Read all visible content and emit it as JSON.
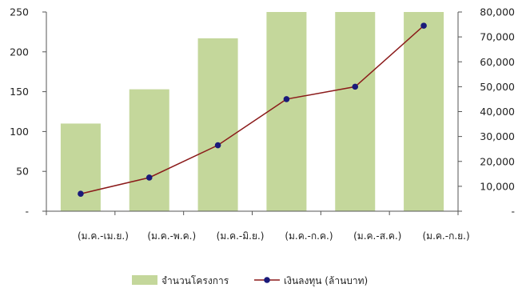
{
  "chart_data": {
    "type": "bar+line",
    "categories": [
      "(ม.ค.-เม.ย.)",
      "(ม.ค.-พ.ค.)",
      "(ม.ค.-มิ.ย.)",
      "(ม.ค.-ก.ค.)",
      "(ม.ค.-ส.ค.)",
      "(ม.ค.-ก.ย.)"
    ],
    "series": [
      {
        "name": "จำนวนโครงการ",
        "type": "bar",
        "axis": "left",
        "values": [
          110,
          153,
          217,
          250,
          250,
          250
        ]
      },
      {
        "name": "เงินลงทุน (ล้านบาท)",
        "type": "line",
        "axis": "right",
        "values": [
          7000,
          13500,
          26500,
          45000,
          50000,
          74500
        ]
      }
    ],
    "left_axis": {
      "ylim": [
        0,
        250
      ],
      "ticks": [
        "-",
        "50",
        "100",
        "150",
        "200",
        "250"
      ]
    },
    "right_axis": {
      "ylim": [
        0,
        80000
      ],
      "ticks": [
        "-",
        "10,000",
        "20,000",
        "30,000",
        "40,000",
        "50,000",
        "60,000",
        "70,000",
        "80,000"
      ]
    },
    "grid": false,
    "legend": "bottom",
    "colors": {
      "bar": "#c4d79b",
      "line": "#8b1a1a",
      "marker": "#1a1a7a",
      "axis": "#555555"
    }
  }
}
